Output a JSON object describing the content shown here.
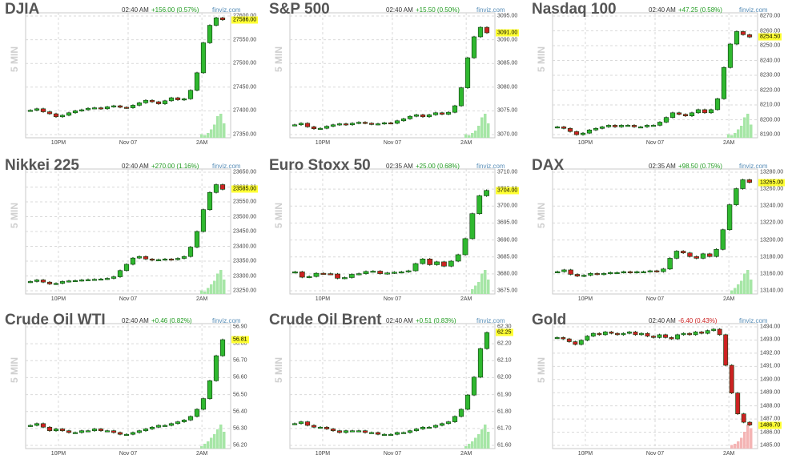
{
  "source": "finviz.com",
  "timeframe_label": "5 MIN",
  "colors": {
    "up": "#2fb82f",
    "down": "#cc2222",
    "outline": "#0d3a0d",
    "vol_up": "#a6e6a6",
    "vol_down": "#f4b4b4",
    "grid": "#d9d9d9",
    "last_label_bg": "#ffff33",
    "change_up": "#1f9a1f",
    "change_down": "#cc2222"
  },
  "chart_data": [
    {
      "type": "candlestick",
      "title": "DJIA",
      "time": "02:40 AM",
      "change": "+156.00 (0.57%)",
      "direction": "up",
      "last_label": "27586.00",
      "last_value": 27586,
      "yticks": [
        "27600.00",
        "27550.00",
        "27500.00",
        "27450.00",
        "27400.00",
        "27350.00"
      ],
      "ylim": [
        27350,
        27600
      ],
      "xticks": [
        "10PM",
        "Nov 07",
        "2AM"
      ],
      "series_close": [
        27405,
        27408,
        27402,
        27398,
        27392,
        27395,
        27400,
        27404,
        27406,
        27409,
        27410,
        27408,
        27412,
        27414,
        27411,
        27410,
        27415,
        27420,
        27425,
        27422,
        27418,
        27424,
        27430,
        27426,
        27428,
        27445,
        27480,
        27540,
        27575,
        27590,
        27586
      ],
      "volume_tail": [
        0.15,
        0.1,
        0.2,
        0.35,
        0.55,
        0.9,
        1.0,
        0.6
      ]
    },
    {
      "type": "candlestick",
      "title": "S&P 500",
      "time": "02:40 AM",
      "change": "+15.50 (0.50%)",
      "direction": "up",
      "last_label": "3091.00",
      "last_value": 3091,
      "yticks": [
        "3095.00",
        "3090.00",
        "3085.00",
        "3080.00",
        "3075.00",
        "3070.00"
      ],
      "ylim": [
        3070,
        3095
      ],
      "xticks": [
        "10PM",
        "Nov 07",
        "2AM"
      ],
      "series_close": [
        3072.6,
        3072.9,
        3072.2,
        3071.8,
        3071.9,
        3072.3,
        3072.6,
        3072.8,
        3072.6,
        3072.9,
        3073.1,
        3072.9,
        3072.7,
        3072.8,
        3073.0,
        3072.9,
        3073.4,
        3073.8,
        3074.3,
        3074.6,
        3074.2,
        3074.6,
        3075.0,
        3074.7,
        3075.1,
        3076.4,
        3080.0,
        3086.0,
        3090.2,
        3092.1,
        3091.0
      ],
      "volume_tail": [
        0.15,
        0.1,
        0.2,
        0.3,
        0.5,
        0.85,
        1.0,
        0.6
      ]
    },
    {
      "type": "candlestick",
      "title": "Nasdaq 100",
      "time": "02:40 AM",
      "change": "+47.25 (0.58%)",
      "direction": "up",
      "last_label": "8254.50",
      "last_value": 8254.5,
      "yticks": [
        "8270.00",
        "8260.00",
        "8250.00",
        "8240.00",
        "8230.00",
        "8220.00",
        "8210.00",
        "8200.00",
        "8190.00"
      ],
      "ylim": [
        8190,
        8270
      ],
      "xticks": [
        "10PM",
        "Nov 07",
        "2AM"
      ],
      "series_close": [
        8197,
        8196,
        8194,
        8192,
        8193,
        8195,
        8196,
        8197,
        8198,
        8197,
        8198,
        8198,
        8197,
        8197,
        8198,
        8198,
        8200,
        8203,
        8206,
        8205,
        8204,
        8206,
        8208,
        8206,
        8208,
        8215,
        8235,
        8250,
        8258,
        8256,
        8254.5
      ],
      "volume_tail": [
        0.15,
        0.1,
        0.2,
        0.35,
        0.5,
        0.85,
        1.0,
        0.55
      ]
    },
    {
      "type": "candlestick",
      "title": "Nikkei 225",
      "time": "02:40 AM",
      "change": "+270.00 (1.16%)",
      "direction": "up",
      "last_label": "23585.00",
      "last_value": 23585,
      "yticks": [
        "23650.00",
        "23600.00",
        "23550.00",
        "23500.00",
        "23450.00",
        "23400.00",
        "23350.00",
        "23300.00",
        "23250.00"
      ],
      "ylim": [
        23250,
        23650
      ],
      "xticks": [
        "10PM",
        "Nov 07",
        "2AM"
      ],
      "series_close": [
        23290,
        23295,
        23288,
        23282,
        23284,
        23290,
        23292,
        23293,
        23295,
        23296,
        23297,
        23298,
        23300,
        23305,
        23325,
        23345,
        23365,
        23370,
        23362,
        23358,
        23360,
        23362,
        23360,
        23364,
        23370,
        23400,
        23450,
        23520,
        23575,
        23600,
        23585
      ],
      "volume_tail": [
        0.15,
        0.1,
        0.25,
        0.4,
        0.55,
        0.85,
        1.0,
        0.6
      ]
    },
    {
      "type": "candlestick",
      "title": "Euro Stoxx 50",
      "time": "02:35 AM",
      "change": "+25.00 (0.68%)",
      "direction": "up",
      "last_label": "3704.00",
      "last_value": 3704,
      "yticks": [
        "3710.00",
        "3705.00",
        "3700.00",
        "3695.00",
        "3690.00",
        "3685.00",
        "3680.00",
        "3675.00"
      ],
      "ylim": [
        3675,
        3710
      ],
      "xticks": [
        "10PM",
        "Nov 07",
        "2AM"
      ],
      "series_close": [
        3681.2,
        3679.7,
        3679.9,
        3680.8,
        3680.7,
        3680.6,
        3679.4,
        3679.6,
        3680.5,
        3680.7,
        3681.3,
        3681.4,
        3680.7,
        3680.9,
        3681.1,
        3681.2,
        3681.5,
        3683.5,
        3684.8,
        3683.2,
        3684.0,
        3682.8,
        3684.2,
        3686.0,
        3690.5,
        3697.5,
        3702.5,
        3704.0
      ],
      "volume_tail": [
        0.2,
        0.35,
        0.5,
        0.85,
        1.0,
        0.6
      ]
    },
    {
      "type": "candlestick",
      "title": "DAX",
      "time": "02:35 AM",
      "change": "+98.50 (0.75%)",
      "direction": "up",
      "last_label": "13265.00",
      "last_value": 13265,
      "yticks": [
        "13280.00",
        "13260.00",
        "13240.00",
        "13220.00",
        "13200.00",
        "13180.00",
        "13160.00",
        "13140.00"
      ],
      "ylim": [
        13140,
        13280
      ],
      "xticks": [
        "10PM",
        "Nov 07",
        "2AM"
      ],
      "series_close": [
        13165,
        13167,
        13162,
        13160,
        13161,
        13163,
        13162,
        13163,
        13164,
        13164,
        13165,
        13164,
        13165,
        13165,
        13166,
        13165,
        13168,
        13180,
        13188,
        13186,
        13182,
        13180,
        13185,
        13182,
        13190,
        13212,
        13240,
        13258,
        13268,
        13265
      ],
      "volume_tail": [
        0.15,
        0.25,
        0.4,
        0.55,
        0.85,
        1.0,
        0.6
      ]
    },
    {
      "type": "candlestick",
      "title": "Crude Oil WTI",
      "time": "02:40 AM",
      "change": "+0.46 (0.82%)",
      "direction": "up",
      "last_label": "56.81",
      "last_value": 56.81,
      "yticks": [
        "56.90",
        "56.80",
        "56.70",
        "56.60",
        "56.50",
        "56.40",
        "56.30",
        "56.20"
      ],
      "ylim": [
        56.2,
        56.9
      ],
      "xticks": [
        "10PM",
        "Nov 07",
        "2AM"
      ],
      "series_close": [
        56.33,
        56.34,
        56.32,
        56.3,
        56.31,
        56.3,
        56.29,
        56.29,
        56.3,
        56.3,
        56.31,
        56.3,
        56.3,
        56.29,
        56.28,
        56.28,
        56.29,
        56.3,
        56.31,
        56.32,
        56.33,
        56.33,
        56.34,
        56.35,
        56.36,
        56.38,
        56.42,
        56.48,
        56.58,
        56.72,
        56.81
      ],
      "volume_tail": [
        0.1,
        0.2,
        0.3,
        0.45,
        0.6,
        0.8,
        1.0,
        0.7
      ]
    },
    {
      "type": "candlestick",
      "title": "Crude Oil Brent",
      "time": "02:40 AM",
      "change": "+0.51 (0.83%)",
      "direction": "up",
      "last_label": "62.25",
      "last_value": 62.25,
      "yticks": [
        "62.30",
        "62.20",
        "62.10",
        "62.00",
        "61.90",
        "61.80",
        "61.70",
        "61.60"
      ],
      "ylim": [
        61.6,
        62.3
      ],
      "xticks": [
        "10PM",
        "Nov 07",
        "2AM"
      ],
      "series_close": [
        61.74,
        61.75,
        61.73,
        61.72,
        61.72,
        61.71,
        61.7,
        61.69,
        61.7,
        61.7,
        61.7,
        61.69,
        61.69,
        61.68,
        61.68,
        61.68,
        61.69,
        61.69,
        61.7,
        61.71,
        61.72,
        61.72,
        61.73,
        61.74,
        61.75,
        61.78,
        61.82,
        61.9,
        62.0,
        62.16,
        62.25
      ],
      "volume_tail": [
        0.1,
        0.2,
        0.3,
        0.45,
        0.6,
        0.8,
        1.0,
        0.7
      ]
    },
    {
      "type": "candlestick",
      "title": "Gold",
      "time": "02:40 AM",
      "change": "-6.40 (0.43%)",
      "direction": "down",
      "last_label": "1486.70",
      "last_value": 1486.7,
      "yticks": [
        "1494.00",
        "1493.00",
        "1492.00",
        "1491.00",
        "1490.00",
        "1489.00",
        "1488.00",
        "1487.00",
        "1486.00",
        "1485.00"
      ],
      "ylim": [
        1485,
        1494
      ],
      "xticks": [
        "10PM",
        "Nov 07",
        "2AM"
      ],
      "series_close": [
        1493.0,
        1492.9,
        1492.7,
        1492.5,
        1492.8,
        1493.1,
        1493.3,
        1493.2,
        1493.4,
        1493.3,
        1493.2,
        1493.3,
        1493.4,
        1493.2,
        1493.3,
        1493.1,
        1493.0,
        1493.2,
        1493.0,
        1492.9,
        1493.2,
        1493.3,
        1493.2,
        1493.4,
        1493.3,
        1493.5,
        1493.6,
        1493.2,
        1491.0,
        1489.0,
        1487.5,
        1486.9,
        1486.7
      ],
      "volume_tail": [
        0.15,
        0.2,
        0.3,
        0.45,
        0.7,
        1.0,
        0.85
      ]
    }
  ]
}
